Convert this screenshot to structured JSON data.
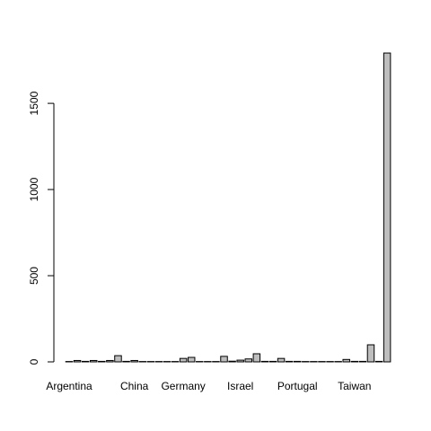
{
  "chart_data": {
    "type": "bar",
    "categories": [
      "Argentina",
      null,
      null,
      null,
      null,
      null,
      null,
      null,
      "China",
      null,
      null,
      null,
      null,
      null,
      "Germany",
      null,
      null,
      null,
      null,
      null,
      null,
      "Israel",
      null,
      null,
      null,
      null,
      null,
      null,
      "Portugal",
      null,
      null,
      null,
      null,
      null,
      null,
      "Taiwan",
      null,
      null,
      null,
      null
    ],
    "values": [
      2,
      8,
      3,
      8,
      3,
      8,
      36,
      3,
      8,
      2,
      2,
      2,
      2,
      2,
      20,
      26,
      2,
      2,
      2,
      32,
      4,
      10,
      17,
      47,
      3,
      3,
      20,
      3,
      3,
      2,
      2,
      2,
      2,
      2,
      14,
      3,
      3,
      99,
      3,
      1792
    ],
    "color": "#bebebe",
    "ylim": [
      0,
      1860
    ],
    "yticks": [
      0,
      500,
      1000,
      1500
    ]
  }
}
